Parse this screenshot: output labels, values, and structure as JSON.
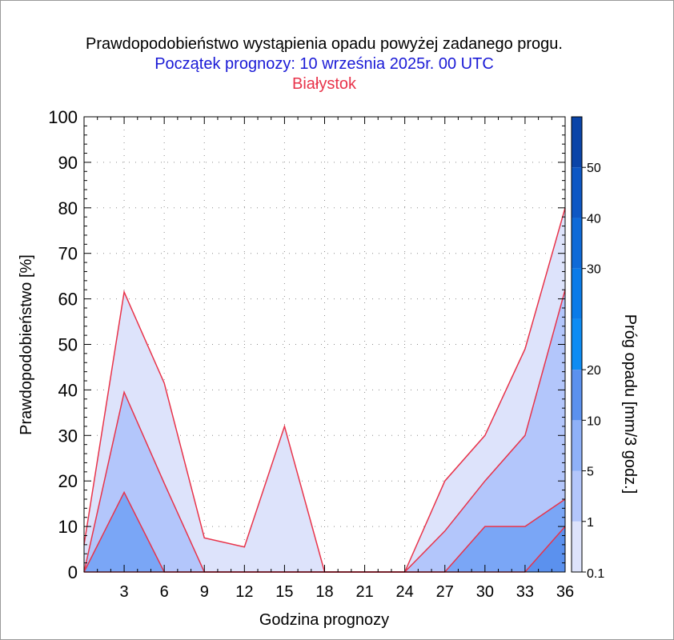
{
  "chart_data": {
    "type": "area",
    "title": "Prawdopodobieństwo wystąpienia opadu powyżej zadanego progu.",
    "subtitle": "Początek prognozy: 10 września 2025r. 00 UTC",
    "location": "Białystok",
    "xlabel": "Godzina prognozy",
    "ylabel": "Prawdopodobieństwo [%]",
    "colorbar_label": "Próg opadu [mm/3 godz.]",
    "xlim": [
      0,
      36
    ],
    "ylim": [
      0,
      100
    ],
    "x_ticks": [
      3,
      6,
      9,
      12,
      15,
      18,
      21,
      24,
      27,
      30,
      33,
      36
    ],
    "x_tick_labels": [
      "3",
      "6",
      "9",
      "12",
      "15",
      "18",
      "21",
      "24",
      "27",
      "30",
      "33",
      "36"
    ],
    "y_ticks": [
      0,
      10,
      20,
      30,
      40,
      50,
      60,
      70,
      80,
      90,
      100
    ],
    "y_tick_labels": [
      "0",
      "10",
      "20",
      "30",
      "40",
      "50",
      "60",
      "70",
      "80",
      "90",
      "100"
    ],
    "grid": true,
    "x": [
      0,
      3,
      6,
      9,
      12,
      15,
      18,
      21,
      24,
      27,
      30,
      33,
      36
    ],
    "series": [
      {
        "threshold": 0.1,
        "color": "#dde3fb",
        "values": [
          6,
          61.5,
          41.5,
          7.5,
          5.5,
          32,
          0,
          0,
          0,
          20,
          30,
          49,
          80
        ]
      },
      {
        "threshold": 1,
        "color": "#b3c6fb",
        "values": [
          0,
          39.5,
          19.5,
          0,
          0,
          0,
          0,
          0,
          0,
          9,
          20,
          30,
          62
        ]
      },
      {
        "threshold": 5,
        "color": "#7aa6f6",
        "values": [
          0,
          17.5,
          0,
          0,
          0,
          0,
          0,
          0,
          0,
          0,
          10,
          10,
          16
        ]
      },
      {
        "threshold": 10,
        "color": "#5b91ee",
        "values": [
          0,
          0,
          0,
          0,
          0,
          0,
          0,
          0,
          0,
          0,
          0,
          0,
          10
        ]
      }
    ],
    "line_color": "#e8334a",
    "colorbar": {
      "bands": [
        {
          "from": 0.1,
          "to": 1,
          "color": "#dde3fb"
        },
        {
          "from": 1,
          "to": 5,
          "color": "#b3c6fb"
        },
        {
          "from": 5,
          "to": 10,
          "color": "#8fb1f8"
        },
        {
          "from": 10,
          "to": 20,
          "color": "#5b91ee"
        },
        {
          "from": 20,
          "to": 25,
          "color": "#0d8cf3"
        },
        {
          "from": 25,
          "to": 30,
          "color": "#0a7be8"
        },
        {
          "from": 30,
          "to": 40,
          "color": "#0e6ad8"
        },
        {
          "from": 40,
          "to": 50,
          "color": "#0d57c4"
        },
        {
          "from": 50,
          "to": 60,
          "color": "#0a44a8"
        }
      ],
      "tick_labels": [
        "0.1",
        "1",
        "5",
        "10",
        "20",
        "30",
        "40",
        "50"
      ]
    }
  }
}
